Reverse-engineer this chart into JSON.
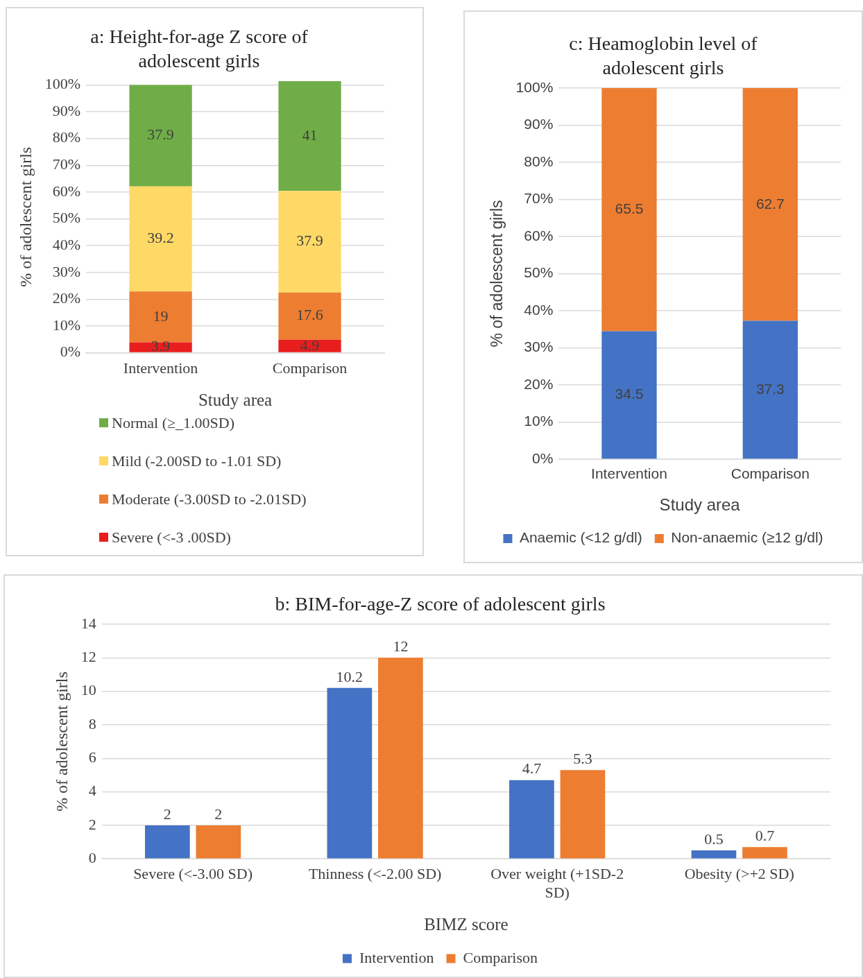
{
  "chart_data": [
    {
      "type": "bar",
      "title": "a: Height-for-age Z score of adolescent girls",
      "xlabel": "Study area",
      "ylabel": "% of adolescent girls",
      "categories": [
        "Intervention",
        "Comparison"
      ],
      "stacked": true,
      "data_labels": true,
      "grid": "y",
      "legend": "bottom",
      "ylim": [
        0,
        101.4
      ],
      "yticks": [
        {
          "value": 0,
          "label": "0%"
        },
        {
          "value": 10,
          "label": "10%"
        },
        {
          "value": 20,
          "label": "20%"
        },
        {
          "value": 30,
          "label": "30%"
        },
        {
          "value": 40,
          "label": "40%"
        },
        {
          "value": 50,
          "label": "50%"
        },
        {
          "value": 60,
          "label": "60%"
        },
        {
          "value": 70,
          "label": "70%"
        },
        {
          "value": 80,
          "label": "80%"
        },
        {
          "value": 90,
          "label": "90%"
        },
        {
          "value": 100,
          "label": "100%"
        }
      ],
      "series": [
        {
          "name": "Severe (<-3 .00SD)",
          "color": "#e81e1e",
          "values": [
            3.9,
            4.9
          ]
        },
        {
          "name": "Moderate (-3.00SD to -2.01SD)",
          "color": "#ed7d31",
          "values": [
            19,
            17.6
          ]
        },
        {
          "name": "Mild (-2.00SD to -1.01 SD)",
          "color": "#ffd966",
          "values": [
            39.2,
            37.9
          ]
        },
        {
          "name": "Normal (≥_1.00SD)",
          "color": "#70ad47",
          "values": [
            37.9,
            41
          ]
        }
      ]
    },
    {
      "type": "bar",
      "title": "c: Heamoglobin level of adolescent girls",
      "xlabel": "Study area",
      "ylabel": "% of adolescent girls",
      "categories": [
        "Intervention",
        "Comparison"
      ],
      "stacked": true,
      "data_labels": true,
      "grid": "y",
      "legend": "bottom",
      "ylim": [
        0,
        100
      ],
      "yticks": [
        {
          "value": 0,
          "label": "0%"
        },
        {
          "value": 10,
          "label": "10%"
        },
        {
          "value": 20,
          "label": "20%"
        },
        {
          "value": 30,
          "label": "30%"
        },
        {
          "value": 40,
          "label": "40%"
        },
        {
          "value": 50,
          "label": "50%"
        },
        {
          "value": 60,
          "label": "60%"
        },
        {
          "value": 70,
          "label": "70%"
        },
        {
          "value": 80,
          "label": "80%"
        },
        {
          "value": 90,
          "label": "90%"
        },
        {
          "value": 100,
          "label": "100%"
        }
      ],
      "series": [
        {
          "name": "Anaemic (<12 g/dl)",
          "color": "#4472c4",
          "values": [
            34.5,
            37.3
          ]
        },
        {
          "name": "Non-anaemic (≥12 g/dl)",
          "color": "#ed7d31",
          "values": [
            65.5,
            62.7
          ]
        }
      ]
    },
    {
      "type": "bar",
      "title": "b: BIM-for-age-Z score of adolescent girls",
      "xlabel": "BIMZ score",
      "ylabel": "% of adolescent girls",
      "categories": [
        "Severe (<-3.00 SD)",
        "Thinness (<-2.00 SD)",
        "Over weight (+1SD-2 SD)",
        "Obesity (>+2 SD)"
      ],
      "data_labels": true,
      "grid": "y",
      "legend": "bottom",
      "ylim": [
        0,
        14
      ],
      "yticks": [
        0,
        2,
        4,
        6,
        8,
        10,
        12,
        14
      ],
      "series": [
        {
          "name": "Intervention",
          "color": "#4472c4",
          "values": [
            2,
            10.2,
            4.7,
            0.5
          ]
        },
        {
          "name": "Comparison",
          "color": "#ed7d31",
          "values": [
            2,
            12,
            5.3,
            0.7
          ]
        }
      ]
    }
  ]
}
